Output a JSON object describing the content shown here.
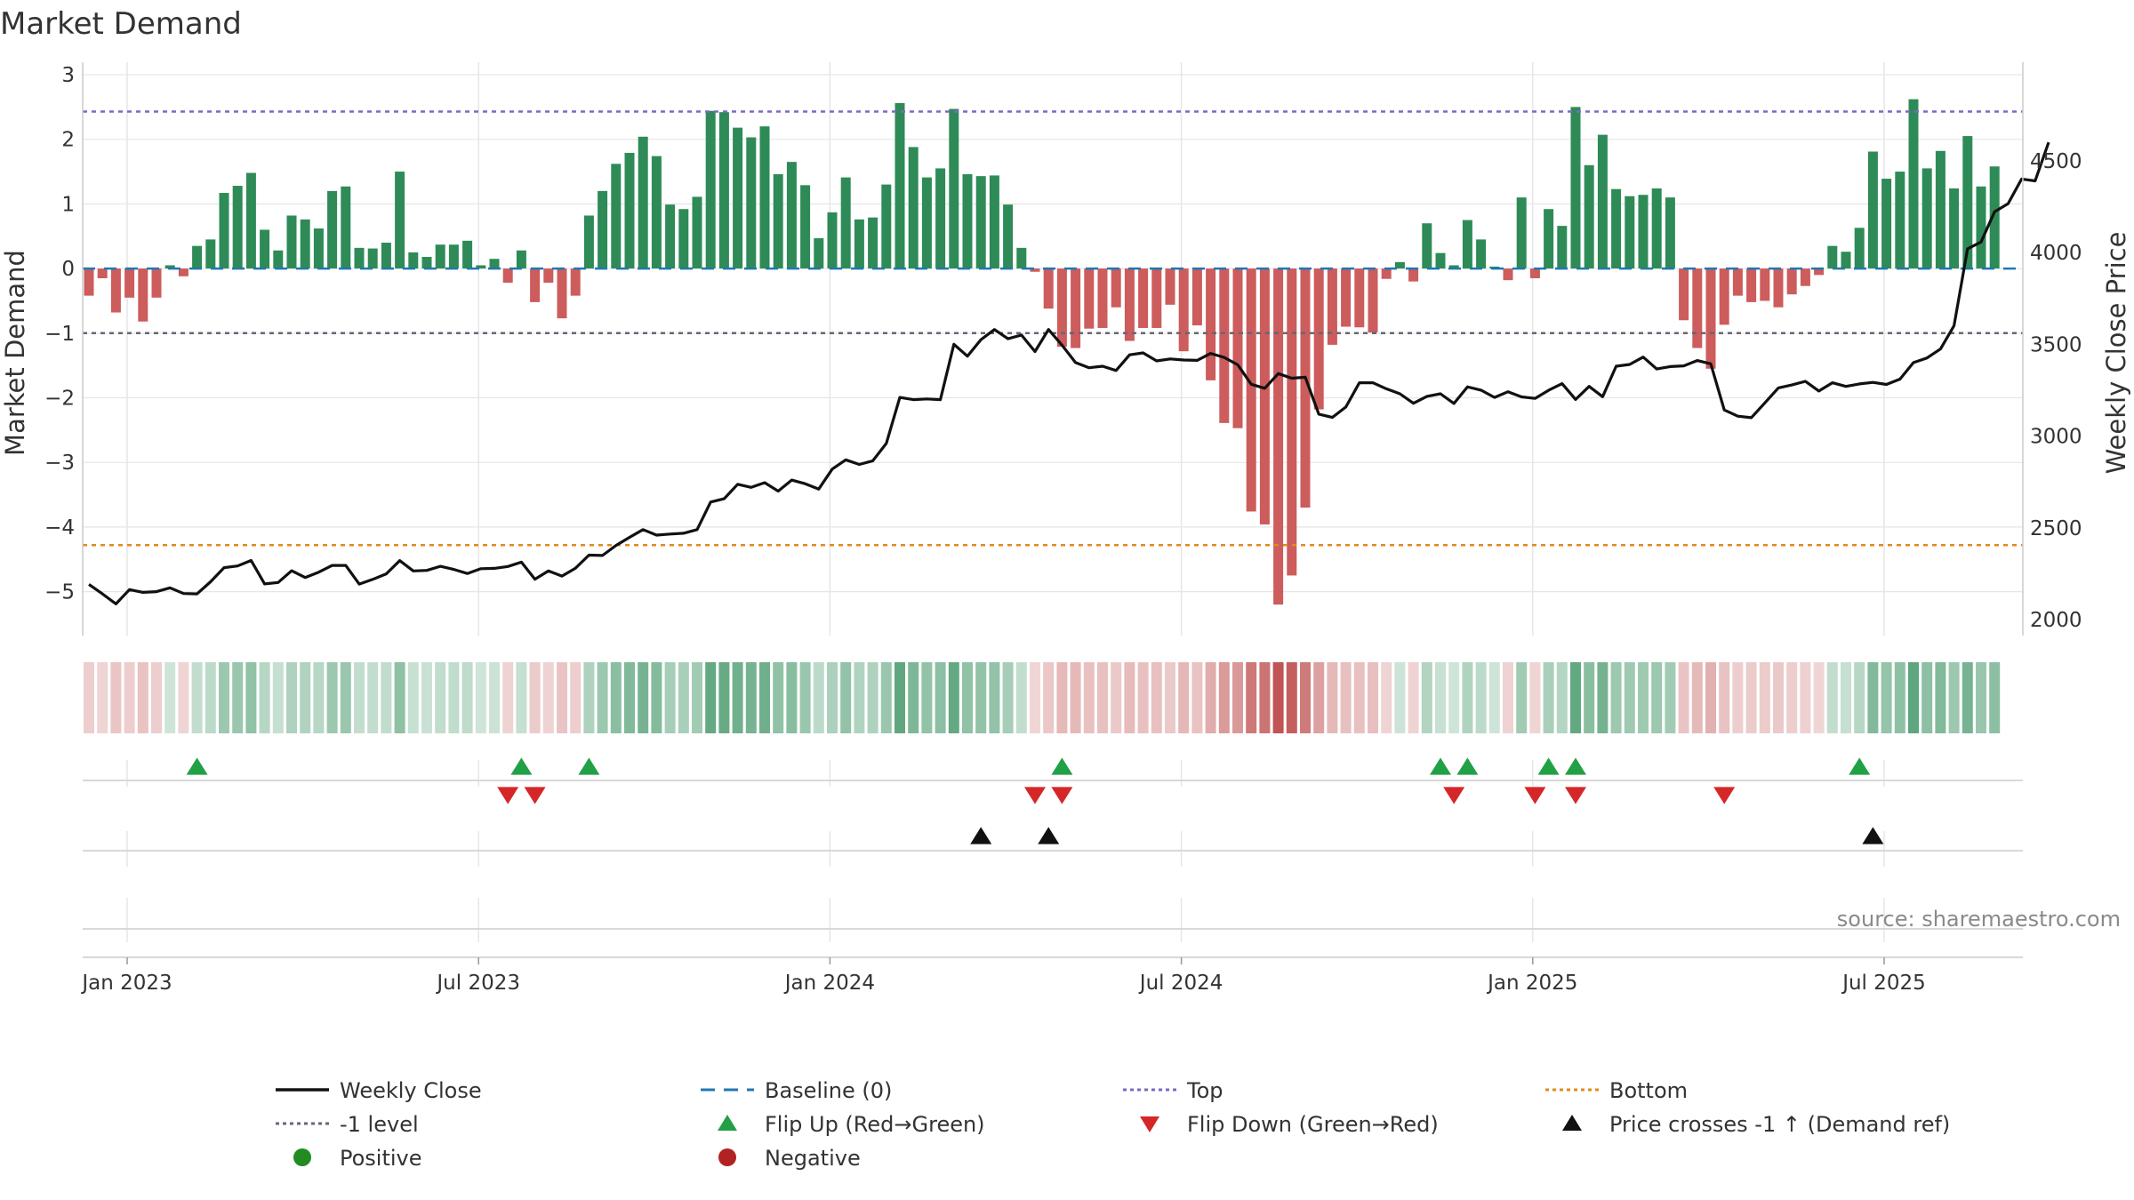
{
  "chart_data": {
    "type": "bar+line",
    "title": "Market Demand",
    "ylabel_left": "Market Demand",
    "ylabel_right": "Weekly Close Price",
    "ylim_left": [
      -5.5,
      3.0
    ],
    "ylim_right": [
      1950,
      4890
    ],
    "left_ticks": [
      3,
      2,
      1,
      0,
      -1,
      -2,
      -3,
      -4,
      -5
    ],
    "left_tick_labels": [
      "3",
      "2",
      "1",
      "0",
      "−1",
      "−2",
      "−3",
      "−4",
      "−5"
    ],
    "right_ticks": [
      4500,
      4000,
      3500,
      3000,
      2500,
      2000
    ],
    "right_tick_labels": [
      "4500",
      "4000",
      "3500",
      "3000",
      "2500",
      "2000"
    ],
    "x_ticks": [
      0,
      26,
      52,
      78,
      104,
      130
    ],
    "x_tick_labels": [
      "Jan 2023",
      "Jul 2023",
      "Jan 2024",
      "Jul 2024",
      "Jan 2025",
      "Jul 2025"
    ],
    "reference_lines": {
      "top": 2.43,
      "bottom": -4.28,
      "minus_one": -1.0,
      "baseline": 0
    },
    "demand": [
      -0.42,
      -0.15,
      -0.68,
      -0.45,
      -0.82,
      -0.45,
      0.05,
      -0.12,
      0.35,
      0.45,
      1.17,
      1.28,
      1.48,
      0.6,
      0.28,
      0.82,
      0.76,
      0.62,
      1.2,
      1.27,
      0.32,
      0.31,
      0.4,
      1.5,
      0.25,
      0.18,
      0.37,
      0.37,
      0.43,
      0.05,
      0.15,
      -0.22,
      0.28,
      -0.52,
      -0.22,
      -0.77,
      -0.42,
      0.82,
      1.2,
      1.62,
      1.79,
      2.04,
      1.74,
      0.99,
      0.92,
      1.11,
      2.44,
      2.42,
      2.18,
      2.03,
      2.2,
      1.46,
      1.65,
      1.29,
      0.47,
      0.87,
      1.41,
      0.76,
      0.79,
      1.3,
      2.56,
      1.88,
      1.41,
      1.55,
      2.47,
      1.46,
      1.43,
      1.44,
      0.99,
      0.32,
      -0.05,
      -0.62,
      -1.21,
      -1.23,
      -0.93,
      -0.92,
      -0.6,
      -1.12,
      -0.92,
      -0.92,
      -0.56,
      -1.28,
      -0.88,
      -1.73,
      -2.39,
      -2.47,
      -3.76,
      -3.96,
      -5.2,
      -4.75,
      -3.7,
      -2.18,
      -1.18,
      -0.9,
      -0.91,
      -0.99,
      -0.16,
      0.1,
      -0.2,
      0.7,
      0.24,
      0.05,
      0.75,
      0.45,
      0.03,
      -0.18,
      1.1,
      -0.15,
      0.92,
      0.66,
      2.5,
      1.6,
      2.07,
      1.23,
      1.12,
      1.14,
      1.24,
      1.1,
      -0.8,
      -1.23,
      -1.55,
      -0.87,
      -0.42,
      -0.52,
      -0.5,
      -0.6,
      -0.4,
      -0.27,
      -0.1,
      0.35,
      0.26,
      0.63,
      1.81,
      1.39,
      1.5,
      2.62,
      1.55,
      1.82,
      1.24,
      2.05,
      1.27,
      1.58
    ],
    "price": [
      2192,
      2140,
      2085,
      2163,
      2148,
      2152,
      2173,
      2142,
      2140,
      2206,
      2283,
      2292,
      2322,
      2194,
      2202,
      2266,
      2229,
      2258,
      2295,
      2295,
      2193,
      2219,
      2249,
      2321,
      2265,
      2268,
      2290,
      2273,
      2251,
      2277,
      2279,
      2289,
      2313,
      2220,
      2265,
      2237,
      2280,
      2351,
      2349,
      2404,
      2448,
      2490,
      2460,
      2466,
      2470,
      2490,
      2640,
      2658,
      2737,
      2720,
      2746,
      2700,
      2760,
      2740,
      2711,
      2820,
      2870,
      2845,
      2865,
      2960,
      3210,
      3198,
      3202,
      3198,
      3500,
      3435,
      3525,
      3580,
      3530,
      3550,
      3460,
      3580,
      3495,
      3400,
      3372,
      3380,
      3357,
      3442,
      3453,
      3409,
      3420,
      3414,
      3412,
      3450,
      3428,
      3388,
      3282,
      3260,
      3340,
      3315,
      3320,
      3119,
      3101,
      3158,
      3290,
      3290,
      3257,
      3230,
      3178,
      3216,
      3230,
      3177,
      3268,
      3250,
      3210,
      3241,
      3213,
      3205,
      3249,
      3285,
      3199,
      3270,
      3214,
      3380,
      3390,
      3430,
      3365,
      3378,
      3382,
      3411,
      3393,
      3142,
      3108,
      3100,
      3180,
      3262,
      3278,
      3298,
      3245,
      3290,
      3270,
      3284,
      3292,
      3281,
      3310,
      3400,
      3425,
      3474,
      3601,
      4020,
      4057,
      4222,
      4266,
      4400,
      4390,
      4600
    ],
    "flip_up_idx": [
      8,
      32,
      37,
      72,
      100,
      102,
      108,
      110,
      131
    ],
    "flip_down_idx": [
      31,
      33,
      70,
      72,
      101,
      107,
      110,
      121
    ],
    "price_cross_idx": [
      66,
      71,
      132
    ],
    "source_text": "source: sharemaestro.com",
    "colors": {
      "bar_positive": "#2e8b57",
      "bar_negative": "#cd5c5c",
      "price_line": "#111111",
      "baseline": "#1f77b4",
      "top_line": "#7b68c8",
      "bottom_line": "#e08a1e",
      "minus_one_line": "#666677",
      "flip_up": "#22a046",
      "flip_down": "#d62728",
      "price_cross": "#111111",
      "positive_dot": "#228b22",
      "negative_dot": "#b22222",
      "grid": "#e6e6e6"
    },
    "legend": [
      {
        "label": "Weekly Close",
        "kind": "line",
        "color": "#111111"
      },
      {
        "label": "Baseline (0)",
        "kind": "dash",
        "color": "#1f77b4"
      },
      {
        "label": "Top",
        "kind": "dot",
        "color": "#7b68c8"
      },
      {
        "label": "Bottom",
        "kind": "dot",
        "color": "#e08a1e"
      },
      {
        "label": "-1 level",
        "kind": "dot",
        "color": "#666677"
      },
      {
        "label": "Flip Up (Red→Green)",
        "kind": "tri-up",
        "color": "#22a046"
      },
      {
        "label": "Flip Down (Green→Red)",
        "kind": "tri-down",
        "color": "#d62728"
      },
      {
        "label": "Price crosses -1 ↑ (Demand ref)",
        "kind": "tri-up",
        "color": "#111111"
      },
      {
        "label": "Positive",
        "kind": "circle",
        "color": "#228b22"
      },
      {
        "label": "Negative",
        "kind": "circle",
        "color": "#b22222"
      }
    ]
  }
}
